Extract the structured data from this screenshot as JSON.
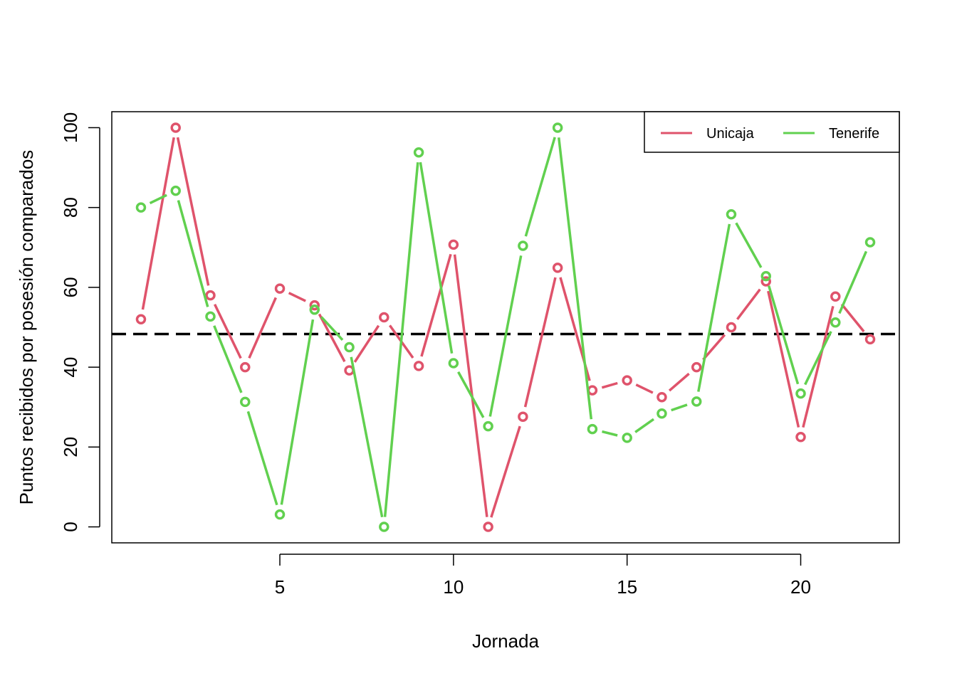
{
  "chart_data": {
    "type": "line",
    "title": "",
    "xlabel": "Jornada",
    "ylabel": "Puntos recibidos por posesión comparados",
    "xlim": [
      0.16,
      22.84
    ],
    "ylim": [
      -4,
      104
    ],
    "xticks": [
      5,
      10,
      15,
      20
    ],
    "yticks": [
      0,
      20,
      40,
      60,
      80,
      100
    ],
    "x": [
      1,
      2,
      3,
      4,
      5,
      6,
      7,
      8,
      9,
      10,
      11,
      12,
      13,
      14,
      15,
      16,
      17,
      18,
      19,
      20,
      21,
      22
    ],
    "series": [
      {
        "name": "Unicaja",
        "color": "#DF536B",
        "values": [
          52,
          100,
          58,
          40,
          59.7,
          55.5,
          39.2,
          52.5,
          40.3,
          70.7,
          0,
          27.6,
          64.9,
          34.2,
          36.7,
          32.5,
          40,
          50,
          61.5,
          22.5,
          57.7,
          47
        ]
      },
      {
        "name": "Tenerife",
        "color": "#61D04F",
        "values": [
          80,
          84.2,
          52.7,
          31.3,
          3.1,
          54.4,
          45,
          0,
          93.8,
          41,
          25.2,
          70.4,
          100,
          24.5,
          22.3,
          28.4,
          31.4,
          78.3,
          62.8,
          33.4,
          51.2,
          71.3
        ]
      }
    ],
    "reference_line": {
      "y": 48.3,
      "style": "dashed",
      "color": "#000000"
    },
    "legend_position": "top-right",
    "grid": false
  }
}
